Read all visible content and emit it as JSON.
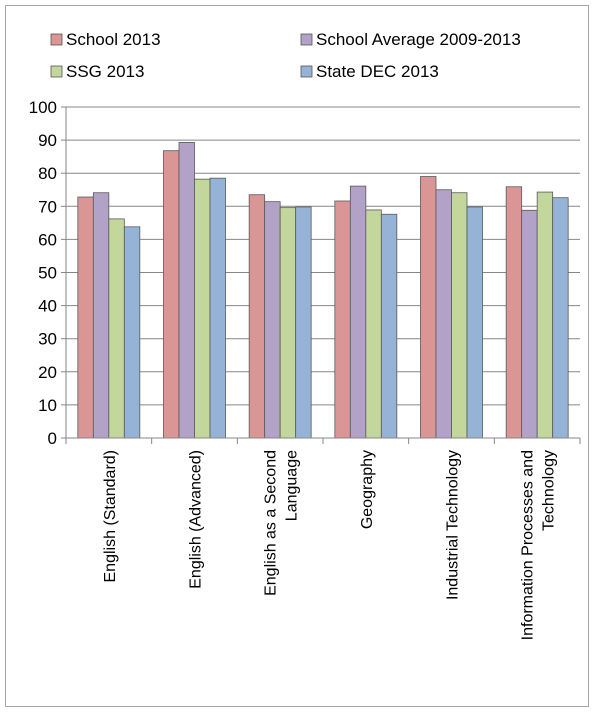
{
  "chart_data": {
    "type": "bar",
    "title": "",
    "xlabel": "",
    "ylabel": "",
    "ylim": [
      0,
      100
    ],
    "yticks": [
      0,
      10,
      20,
      30,
      40,
      50,
      60,
      70,
      80,
      90,
      100
    ],
    "grid": true,
    "legend_position": "top",
    "categories": [
      [
        "English (Standard)"
      ],
      [
        "English (Advanced)"
      ],
      [
        "English as a Second",
        "Language"
      ],
      [
        "Geography"
      ],
      [
        "Industrial Technology"
      ],
      [
        "Information Processes and",
        "Technology"
      ]
    ],
    "series": [
      {
        "name": "School 2013",
        "color": "#d99694",
        "values": [
          72.8,
          86.8,
          73.5,
          71.6,
          79.0,
          75.9
        ]
      },
      {
        "name": "School Average 2009-2013",
        "color": "#b3a2c7",
        "values": [
          74.1,
          89.3,
          71.4,
          76.1,
          75.0,
          68.8
        ]
      },
      {
        "name": "SSG 2013",
        "color": "#c3d69b",
        "values": [
          66.2,
          78.2,
          69.6,
          68.9,
          74.1,
          74.3
        ]
      },
      {
        "name": "State DEC 2013",
        "color": "#95b3d7",
        "values": [
          63.8,
          78.5,
          69.8,
          67.6,
          69.8,
          72.6
        ]
      }
    ]
  }
}
